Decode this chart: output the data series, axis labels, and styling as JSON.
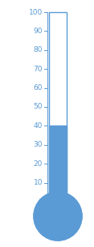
{
  "value": 40,
  "max_value": 100,
  "min_value": 0,
  "tick_step": 10,
  "fill_color": "#5B9BD5",
  "border_color": "#5B9BD5",
  "bg_color": "#ffffff",
  "axis_label_fontsize": 6.5,
  "axis_color": "#5B9BD5",
  "fig_width": 1.17,
  "fig_height": 3.05,
  "dpi": 100
}
